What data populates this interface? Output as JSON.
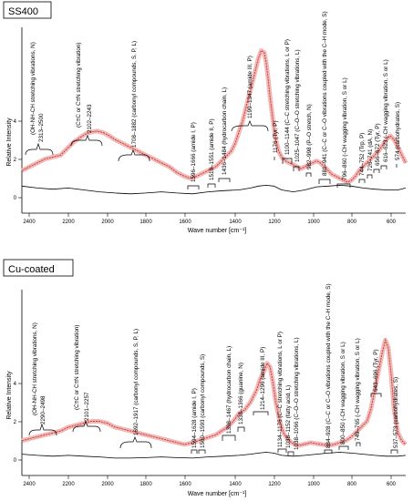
{
  "chart_data": [
    {
      "type": "line",
      "title": "SS400",
      "xlabel": "Wave number [cm⁻¹]",
      "ylabel": "Relative Intensity",
      "xlim": [
        2520,
        540
      ],
      "ylim": [
        -0.4,
        4.4
      ],
      "x_ticks": [
        "2400",
        "2200",
        "2000",
        "1800",
        "1600",
        "1400",
        "1200",
        "1000",
        "800",
        "600"
      ],
      "y_ticks": [
        "0",
        "2",
        "4"
      ],
      "series": [
        {
          "color": "#c0392b",
          "x": [
            2520,
            2480,
            2440,
            2400,
            2360,
            2320,
            2280,
            2250,
            2220,
            2190,
            2160,
            2130,
            2100,
            2070,
            2040,
            2000,
            1960,
            1920,
            1880,
            1840,
            1800,
            1760,
            1720,
            1680,
            1650,
            1620,
            1600,
            1580,
            1560,
            1540,
            1520,
            1500,
            1480,
            1460,
            1440,
            1420,
            1400,
            1380,
            1360,
            1340,
            1320,
            1300,
            1285,
            1270,
            1260,
            1250,
            1240,
            1225,
            1210,
            1195,
            1180,
            1160,
            1140,
            1120,
            1100,
            1080,
            1060,
            1040,
            1020,
            1000,
            980,
            960,
            940,
            920,
            900,
            880,
            860,
            840,
            820,
            800,
            780,
            760,
            740,
            720,
            700,
            680,
            660,
            640,
            620,
            600,
            580,
            560,
            540
          ],
          "y": [
            0.7,
            0.8,
            0.9,
            1.0,
            1.05,
            1.1,
            1.3,
            1.45,
            1.55,
            1.65,
            1.7,
            1.72,
            1.68,
            1.6,
            1.5,
            1.4,
            1.3,
            1.2,
            1.1,
            1.0,
            0.9,
            0.8,
            0.65,
            0.55,
            0.5,
            0.55,
            0.6,
            0.65,
            0.7,
            0.75,
            0.8,
            0.9,
            1.0,
            1.1,
            1.2,
            1.4,
            1.7,
            2.0,
            2.4,
            2.8,
            3.2,
            3.6,
            3.8,
            3.75,
            3.5,
            3.1,
            2.6,
            2.0,
            1.5,
            1.2,
            1.05,
            0.95,
            0.9,
            0.85,
            0.8,
            0.75,
            0.8,
            0.85,
            0.9,
            0.95,
            0.9,
            0.8,
            0.7,
            0.6,
            0.55,
            0.5,
            0.45,
            0.4,
            0.45,
            0.55,
            0.7,
            0.8,
            0.9,
            1.0,
            1.1,
            1.2,
            1.35,
            1.5,
            1.6,
            1.5,
            1.3,
            1.1,
            0.9
          ]
        },
        {
          "color": "#000000",
          "x": [
            2520,
            2440,
            2360,
            2280,
            2200,
            2120,
            2040,
            1960,
            1880,
            1800,
            1720,
            1640,
            1560,
            1480,
            1400,
            1340,
            1300,
            1260,
            1220,
            1180,
            1120,
            1060,
            1000,
            940,
            880,
            820,
            760,
            700,
            640,
            580,
            540
          ],
          "y": [
            0.3,
            0.25,
            0.22,
            0.25,
            0.2,
            0.15,
            0.12,
            0.1,
            0.12,
            0.15,
            0.12,
            0.1,
            0.15,
            0.18,
            0.2,
            0.25,
            0.3,
            0.32,
            0.3,
            0.2,
            0.15,
            0.2,
            0.28,
            0.3,
            0.32,
            0.3,
            0.25,
            0.22,
            0.2,
            0.2,
            0.25
          ]
        }
      ],
      "annotations": [
        {
          "text": "(OH-NH-CH stretching vibrations, N)",
          "x": 2430,
          "y": 2.3
        },
        {
          "text": "2313–2500",
          "x": 2405,
          "y": 1.6
        },
        {
          "text": "(C≡C or C≡N stretching vibration)",
          "x": 2180,
          "y": 2.6
        },
        {
          "text": "2102–2243",
          "x": 2170,
          "y": 2.0
        },
        {
          "text": "1708–1882 (carbonyl compounds, S, P, L)",
          "x": 1795,
          "y": 1.2
        },
        {
          "text": "1596–1666 (amide I, P)",
          "x": 1630,
          "y": 0.8
        },
        {
          "text": "1519–1551 (amide II, P)",
          "x": 1535,
          "y": 0.8
        },
        {
          "text": "1436–1484 (hydrocarbon chain, L)",
          "x": 1460,
          "y": 0.9
        },
        {
          "text": "1199–1347 (amide III, P)",
          "x": 1273,
          "y": 4.0
        },
        {
          "text": "1176 (Tyr, P)",
          "x": 1176,
          "y": 2.7
        },
        {
          "text": "1100–1144 (C–C stretching vibrations, L or P)",
          "x": 1122,
          "y": 2.4
        },
        {
          "text": "1025–1047 (C–O–O stretching vibrations, L)",
          "x": 1036,
          "y": 2.1
        },
        {
          "text": "982–998 (P–O stretch, N)",
          "x": 990,
          "y": 1.8
        },
        {
          "text": "881–941 (C–C or C–O vibrations coupled with the C–H mode, S)",
          "x": 911,
          "y": 1.5
        },
        {
          "text": "796–860 (-CH wagging vibration, S or L)",
          "x": 828,
          "y": 1.2
        },
        {
          "text": "744–752 (Trp, P)",
          "x": 748,
          "y": 1.5
        },
        {
          "text": "726–741 (dA, N)",
          "x": 733,
          "y": 1.7
        },
        {
          "text": "656–672 (Tyr, P)",
          "x": 664,
          "y": 1.9
        },
        {
          "text": "616–623 (-CH wagging vibration, S or L)",
          "x": 619,
          "y": 2.1
        },
        {
          "text": "574 (carbohydrates, S)",
          "x": 574,
          "y": 2.2
        }
      ]
    },
    {
      "type": "line",
      "title": "Cu-coated",
      "xlabel": "Wave number [cm⁻¹]",
      "ylabel": "Relative Intensity",
      "xlim": [
        2520,
        540
      ],
      "ylim": [
        -0.4,
        4.4
      ],
      "x_ticks": [
        "2400",
        "2200",
        "2000",
        "1800",
        "1600",
        "1400",
        "1200",
        "1000",
        "800",
        "600"
      ],
      "y_ticks": [
        "0",
        "2",
        "4"
      ],
      "series": [
        {
          "color": "#c0392b",
          "x": [
            2520,
            2480,
            2440,
            2400,
            2360,
            2320,
            2280,
            2240,
            2200,
            2160,
            2120,
            2080,
            2040,
            2000,
            1960,
            1920,
            1880,
            1840,
            1800,
            1760,
            1720,
            1680,
            1640,
            1610,
            1580,
            1550,
            1520,
            1490,
            1460,
            1430,
            1400,
            1370,
            1340,
            1310,
            1290,
            1270,
            1255,
            1240,
            1225,
            1210,
            1190,
            1170,
            1150,
            1130,
            1110,
            1090,
            1070,
            1050,
            1030,
            1000,
            970,
            940,
            910,
            880,
            850,
            820,
            800,
            780,
            760,
            740,
            720,
            700,
            680,
            660,
            645,
            630,
            615,
            600,
            580,
            560,
            540
          ],
          "y": [
            0.5,
            0.55,
            0.6,
            0.65,
            0.7,
            0.75,
            0.85,
            0.9,
            0.95,
            1.0,
            1.0,
            0.95,
            0.85,
            0.8,
            0.75,
            0.7,
            0.65,
            0.6,
            0.55,
            0.5,
            0.45,
            0.4,
            0.45,
            0.5,
            0.55,
            0.6,
            0.65,
            0.75,
            0.85,
            1.0,
            1.2,
            1.3,
            1.5,
            1.8,
            2.1,
            2.3,
            2.5,
            2.4,
            2.0,
            1.5,
            1.0,
            0.7,
            0.55,
            0.45,
            0.4,
            0.38,
            0.4,
            0.42,
            0.45,
            0.42,
            0.4,
            0.38,
            0.4,
            0.45,
            0.5,
            0.6,
            0.7,
            0.8,
            0.9,
            1.0,
            1.3,
            1.8,
            2.3,
            2.8,
            3.1,
            2.9,
            2.2,
            1.3,
            0.7,
            0.5,
            0.4
          ]
        },
        {
          "color": "#000000",
          "x": [
            2520,
            2440,
            2360,
            2280,
            2200,
            2120,
            2040,
            1960,
            1880,
            1800,
            1720,
            1640,
            1560,
            1480,
            1400,
            1340,
            1300,
            1260,
            1220,
            1180,
            1120,
            1060,
            1000,
            940,
            880,
            820,
            760,
            700,
            640,
            580,
            540
          ],
          "y": [
            0.15,
            0.12,
            0.1,
            0.12,
            0.1,
            0.08,
            0.05,
            0.05,
            0.06,
            0.08,
            0.06,
            0.05,
            0.08,
            0.1,
            0.12,
            0.15,
            0.18,
            0.2,
            0.18,
            0.12,
            0.1,
            0.12,
            0.15,
            0.18,
            0.2,
            0.18,
            0.15,
            0.12,
            0.1,
            0.1,
            0.12
          ]
        }
      ],
      "annotations": [
        {
          "text": "(OH-NH-CH stretching vibrations, N)",
          "x": 2430,
          "y": 3.0
        },
        {
          "text": "2290–2498",
          "x": 2395,
          "y": 1.5
        },
        {
          "text": "(C≡C or C≡N stretching vibration)",
          "x": 2170,
          "y": 3.1
        },
        {
          "text": "2101–2257",
          "x": 2179,
          "y": 1.6
        },
        {
          "text": "1692–1917 (carbonyl compounds, S, P, L)",
          "x": 1805,
          "y": 1.0
        },
        {
          "text": "1594–1628 (amide I, P)",
          "x": 1611,
          "y": 0.8
        },
        {
          "text": "1560–1593 (carbonyl compounds, S)",
          "x": 1577,
          "y": 0.8
        },
        {
          "text": "1398–1467 (hydrocarbon chain, L)",
          "x": 1432,
          "y": 1.2
        },
        {
          "text": "1338–1366 (guanine, N)",
          "x": 1352,
          "y": 1.5
        },
        {
          "text": "1214–1296 (amide III, P)",
          "x": 1255,
          "y": 2.6
        },
        {
          "text": "1134–1176 (C–C stretching vibrations, L or P)",
          "x": 1155,
          "y": 0.8
        },
        {
          "text": "1038–1152 (fatty acid, L)",
          "x": 1095,
          "y": 0.7
        },
        {
          "text": "1038–1066 (C–O–O stretching vibrations, L)",
          "x": 1052,
          "y": 0.6
        },
        {
          "text": "884–928 (C–C or C–O vibrations coupled with the C–H mode, S)",
          "x": 906,
          "y": 0.8
        },
        {
          "text": "800–850 (-CH wagging vibration, S or L)",
          "x": 825,
          "y": 1.0
        },
        {
          "text": "749–765 (-CH wagging vibration, S or L)",
          "x": 757,
          "y": 1.1
        },
        {
          "text": "643–696 (Tyr, P)",
          "x": 669,
          "y": 3.3
        },
        {
          "text": "537–573 (carbohydrates, S)",
          "x": 555,
          "y": 0.8
        }
      ]
    }
  ]
}
